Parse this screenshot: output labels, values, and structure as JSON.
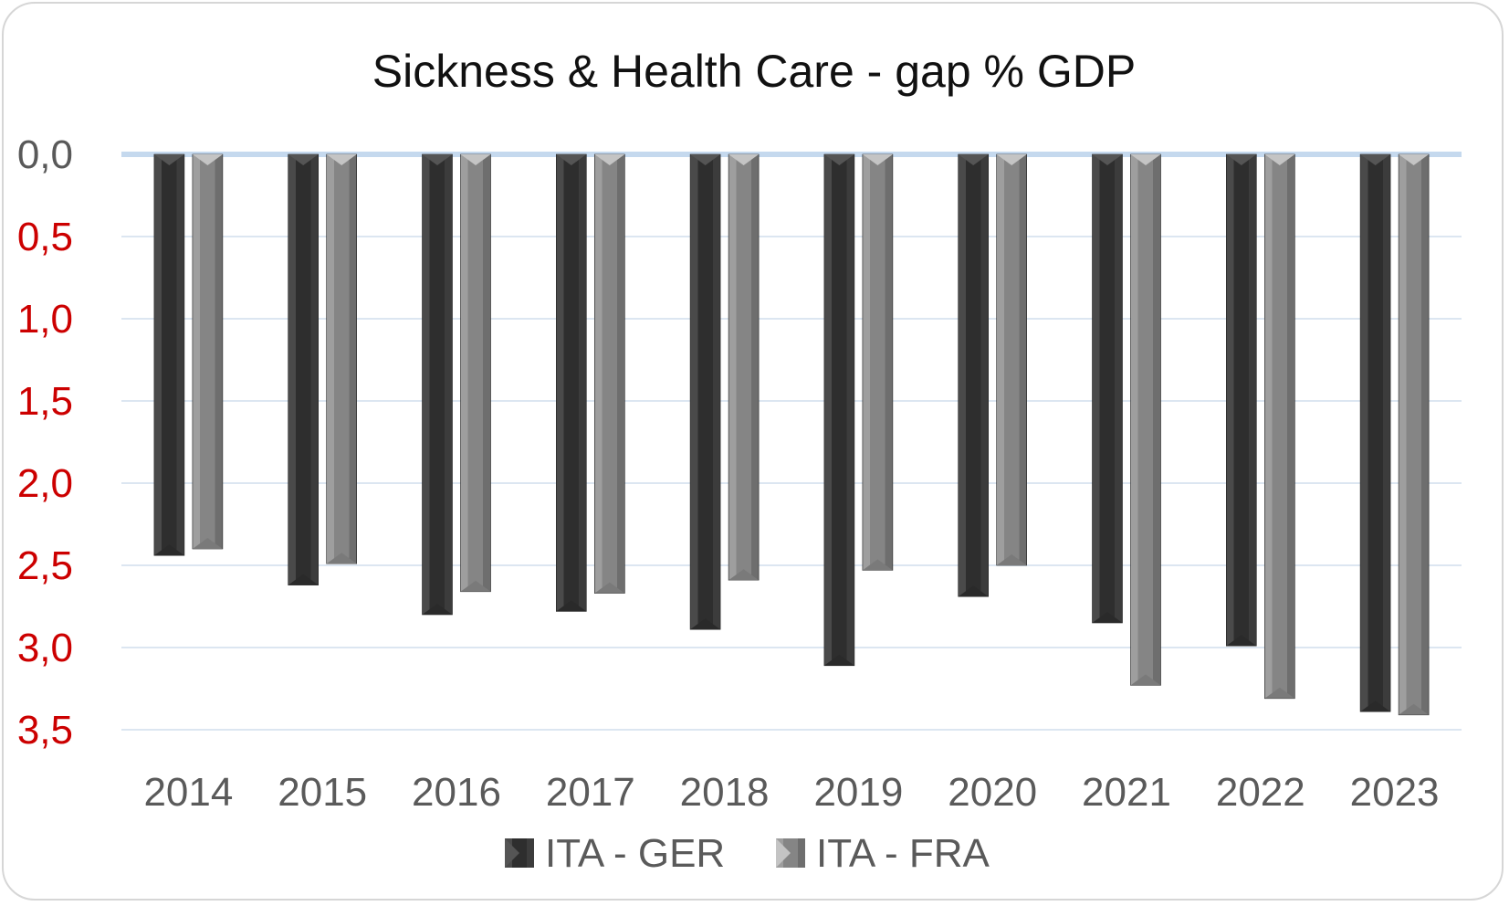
{
  "chart_data": {
    "type": "bar",
    "title": "Sickness & Health Care - gap % GDP",
    "xlabel": "",
    "ylabel": "",
    "categories": [
      "2014",
      "2015",
      "2016",
      "2017",
      "2018",
      "2019",
      "2020",
      "2021",
      "2022",
      "2023"
    ],
    "y_ticks": [
      "0,0",
      "0,5",
      "1,0",
      "1,5",
      "2,0",
      "2,5",
      "3,0",
      "3,5"
    ],
    "ylim": [
      0,
      3.5
    ],
    "y_axis_reversed": true,
    "grid": true,
    "legend_position": "bottom",
    "series": [
      {
        "name": "ITA - GER",
        "color": "#3a3a3a",
        "values": [
          2.44,
          2.62,
          2.8,
          2.78,
          2.89,
          3.11,
          2.69,
          2.85,
          2.99,
          3.39
        ]
      },
      {
        "name": "ITA - FRA",
        "color": "#8a8a8a",
        "values": [
          2.4,
          2.49,
          2.66,
          2.67,
          2.59,
          2.53,
          2.5,
          3.23,
          3.31,
          3.41
        ]
      }
    ],
    "colors": {
      "zero_tick": "#595959",
      "other_ticks": "#cc0000",
      "gridline": "#dce6f1",
      "axis_line": "#c5d9ee"
    }
  }
}
